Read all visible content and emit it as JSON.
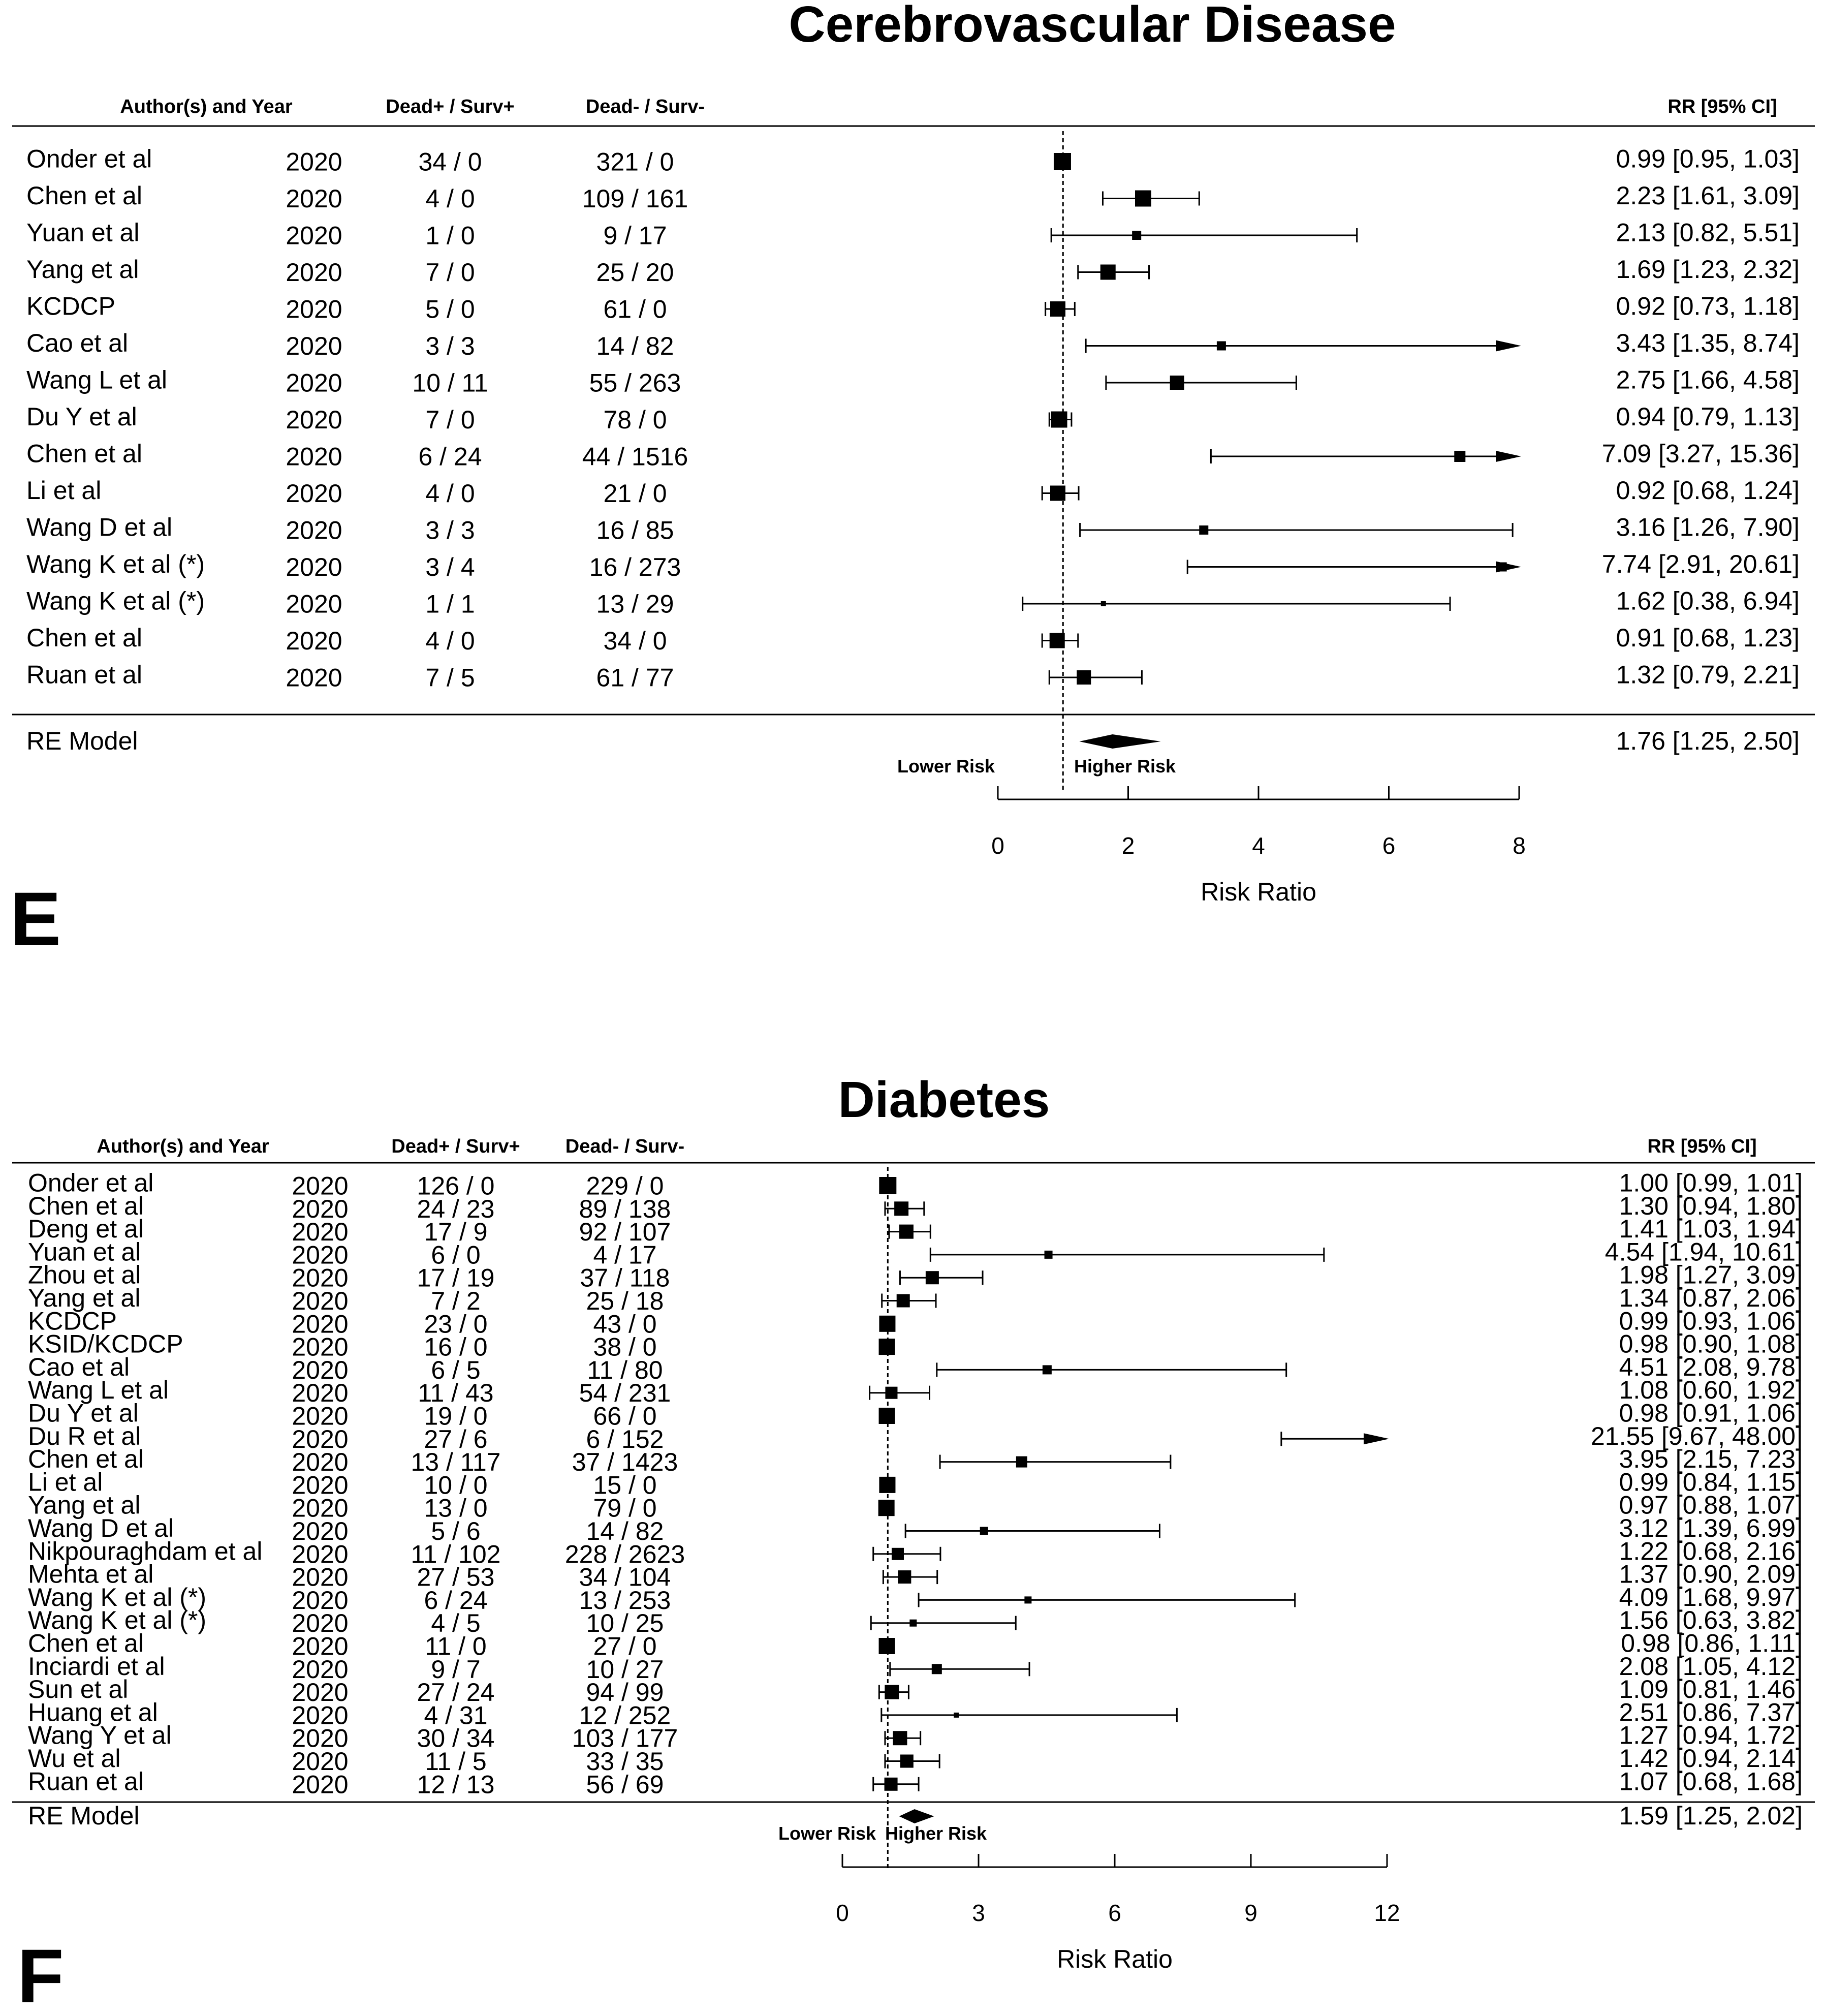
{
  "chart_data": [
    {
      "type": "forest",
      "panel_label": "E",
      "title": "Cerebrovascular Disease",
      "headers": {
        "study": "Author(s) and Year",
        "dead_pos": "Dead+ / Surv+",
        "dead_neg": "Dead- / Surv-",
        "estimate": "RR [95% CI]"
      },
      "studies": [
        {
          "author": "Onder et al",
          "year": "2020",
          "dead_pos": "34 / 0",
          "dead_neg": "321 / 0",
          "rr": 0.99,
          "lo": 0.95,
          "hi": 1.03,
          "label": "0.99 [0.95,  1.03]",
          "size": 34
        },
        {
          "author": "Chen et al",
          "year": "2020",
          "dead_pos": "4 / 0",
          "dead_neg": "109 / 161",
          "rr": 2.23,
          "lo": 1.61,
          "hi": 3.09,
          "label": "2.23 [1.61,  3.09]",
          "size": 32
        },
        {
          "author": "Yuan et al",
          "year": "2020",
          "dead_pos": "1 / 0",
          "dead_neg": "9 / 17",
          "rr": 2.13,
          "lo": 0.82,
          "hi": 5.51,
          "label": "2.13 [0.82,  5.51]",
          "size": 18
        },
        {
          "author": "Yang et al",
          "year": "2020",
          "dead_pos": "7 / 0",
          "dead_neg": "25 / 20",
          "rr": 1.69,
          "lo": 1.23,
          "hi": 2.32,
          "label": "1.69 [1.23,  2.32]",
          "size": 30
        },
        {
          "author": "KCDCP",
          "year": "2020",
          "dead_pos": "5 / 0",
          "dead_neg": "61 / 0",
          "rr": 0.92,
          "lo": 0.73,
          "hi": 1.18,
          "label": "0.92 [0.73,  1.18]",
          "size": 30
        },
        {
          "author": "Cao et al",
          "year": "2020",
          "dead_pos": "3 / 3",
          "dead_neg": "14 / 82",
          "rr": 3.43,
          "lo": 1.35,
          "hi": 8.74,
          "label": "3.43 [1.35,  8.74]",
          "size": 18
        },
        {
          "author": "Wang L et al",
          "year": "2020",
          "dead_pos": "10 / 11",
          "dead_neg": "55 / 263",
          "rr": 2.75,
          "lo": 1.66,
          "hi": 4.58,
          "label": "2.75 [1.66,  4.58]",
          "size": 28
        },
        {
          "author": "Du Y et al",
          "year": "2020",
          "dead_pos": "7 / 0",
          "dead_neg": "78 / 0",
          "rr": 0.94,
          "lo": 0.79,
          "hi": 1.13,
          "label": "0.94 [0.79,  1.13]",
          "size": 32
        },
        {
          "author": "Chen et al",
          "year": "2020",
          "dead_pos": "6 / 24",
          "dead_neg": "44 / 1516",
          "rr": 7.09,
          "lo": 3.27,
          "hi": 15.36,
          "label": "7.09 [3.27, 15.36]",
          "size": 22
        },
        {
          "author": "Li et al",
          "year": "2020",
          "dead_pos": "4 / 0",
          "dead_neg": "21 / 0",
          "rr": 0.92,
          "lo": 0.68,
          "hi": 1.24,
          "label": "0.92 [0.68,  1.24]",
          "size": 30
        },
        {
          "author": "Wang D et al",
          "year": "2020",
          "dead_pos": "3 / 3",
          "dead_neg": "16 / 85",
          "rr": 3.16,
          "lo": 1.26,
          "hi": 7.9,
          "label": "3.16 [1.26,  7.90]",
          "size": 18
        },
        {
          "author": "Wang K et al (*)",
          "year": "2020",
          "dead_pos": "3 / 4",
          "dead_neg": "16 / 273",
          "rr": 7.74,
          "lo": 2.91,
          "hi": 20.61,
          "label": "7.74 [2.91, 20.61]",
          "size": 18
        },
        {
          "author": "Wang K et al (*)",
          "year": "2020",
          "dead_pos": "1 / 1",
          "dead_neg": "13 / 29",
          "rr": 1.62,
          "lo": 0.38,
          "hi": 6.94,
          "label": "1.62 [0.38,  6.94]",
          "size": 10
        },
        {
          "author": "Chen et al",
          "year": "2020",
          "dead_pos": "4 / 0",
          "dead_neg": "34 / 0",
          "rr": 0.91,
          "lo": 0.68,
          "hi": 1.23,
          "label": "0.91 [0.68,  1.23]",
          "size": 30
        },
        {
          "author": "Ruan et al",
          "year": "2020",
          "dead_pos": "7 / 5",
          "dead_neg": "61 / 77",
          "rr": 1.32,
          "lo": 0.79,
          "hi": 2.21,
          "label": "1.32 [0.79,  2.21]",
          "size": 28
        }
      ],
      "summary": {
        "label": "RE Model",
        "rr": 1.76,
        "lo": 1.25,
        "hi": 2.5,
        "text": "1.76 [1.25,  2.50]"
      },
      "lower_text": "Lower Risk",
      "higher_text": "Higher Risk",
      "xlabel": "Risk Ratio",
      "xlim": [
        0,
        8
      ],
      "ticks": [
        0,
        2,
        4,
        6,
        8
      ],
      "reference_line": 1
    },
    {
      "type": "forest",
      "panel_label": "F",
      "title": "Diabetes",
      "headers": {
        "study": "Author(s) and Year",
        "dead_pos": "Dead+ / Surv+",
        "dead_neg": "Dead- / Surv-",
        "estimate": "RR [95% CI]"
      },
      "studies": [
        {
          "author": "Onder et al",
          "year": "2020",
          "dead_pos": "126 / 0",
          "dead_neg": "229 / 0",
          "rr": 1.0,
          "lo": 0.99,
          "hi": 1.01,
          "label": "1.00 [0.99,  1.01]",
          "size": 34
        },
        {
          "author": "Chen et al",
          "year": "2020",
          "dead_pos": "24 / 23",
          "dead_neg": "89 / 138",
          "rr": 1.3,
          "lo": 0.94,
          "hi": 1.8,
          "label": "1.30 [0.94,  1.80]",
          "size": 28
        },
        {
          "author": "Deng et al",
          "year": "2020",
          "dead_pos": "17 / 9",
          "dead_neg": "92 / 107",
          "rr": 1.41,
          "lo": 1.03,
          "hi": 1.94,
          "label": "1.41 [1.03,  1.94]",
          "size": 28
        },
        {
          "author": "Yuan et al",
          "year": "2020",
          "dead_pos": "6 / 0",
          "dead_neg": "4 / 17",
          "rr": 4.54,
          "lo": 1.94,
          "hi": 10.61,
          "label": "4.54 [1.94, 10.61]",
          "size": 16
        },
        {
          "author": "Zhou et al",
          "year": "2020",
          "dead_pos": "17 / 19",
          "dead_neg": "37 / 118",
          "rr": 1.98,
          "lo": 1.27,
          "hi": 3.09,
          "label": "1.98 [1.27,  3.09]",
          "size": 26
        },
        {
          "author": "Yang et al",
          "year": "2020",
          "dead_pos": "7 / 2",
          "dead_neg": "25 / 18",
          "rr": 1.34,
          "lo": 0.87,
          "hi": 2.06,
          "label": "1.34 [0.87,  2.06]",
          "size": 26
        },
        {
          "author": "KCDCP",
          "year": "2020",
          "dead_pos": "23 / 0",
          "dead_neg": "43 / 0",
          "rr": 0.99,
          "lo": 0.93,
          "hi": 1.06,
          "label": "0.99 [0.93,  1.06]",
          "size": 32
        },
        {
          "author": "KSID/KCDCP",
          "year": "2020",
          "dead_pos": "16 / 0",
          "dead_neg": "38 / 0",
          "rr": 0.98,
          "lo": 0.9,
          "hi": 1.08,
          "label": "0.98 [0.90,  1.08]",
          "size": 32
        },
        {
          "author": "Cao et al",
          "year": "2020",
          "dead_pos": "6 / 5",
          "dead_neg": "11 / 80",
          "rr": 4.51,
          "lo": 2.08,
          "hi": 9.78,
          "label": "4.51 [2.08,  9.78]",
          "size": 18
        },
        {
          "author": "Wang L et al",
          "year": "2020",
          "dead_pos": "11 / 43",
          "dead_neg": "54 / 231",
          "rr": 1.08,
          "lo": 0.6,
          "hi": 1.92,
          "label": "1.08 [0.60,  1.92]",
          "size": 24
        },
        {
          "author": "Du Y et al",
          "year": "2020",
          "dead_pos": "19 / 0",
          "dead_neg": "66 / 0",
          "rr": 0.98,
          "lo": 0.91,
          "hi": 1.06,
          "label": "0.98 [0.91,  1.06]",
          "size": 32
        },
        {
          "author": "Du R et al",
          "year": "2020",
          "dead_pos": "27 / 6",
          "dead_neg": "6 / 152",
          "rr": 21.55,
          "lo": 9.67,
          "hi": 48.0,
          "label": "21.55 [9.67, 48.00]",
          "size": 0
        },
        {
          "author": "Chen et al",
          "year": "2020",
          "dead_pos": "13 / 117",
          "dead_neg": "37 / 1423",
          "rr": 3.95,
          "lo": 2.15,
          "hi": 7.23,
          "label": "3.95 [2.15,  7.23]",
          "size": 22
        },
        {
          "author": "Li et al",
          "year": "2020",
          "dead_pos": "10 / 0",
          "dead_neg": "15 / 0",
          "rr": 0.99,
          "lo": 0.84,
          "hi": 1.15,
          "label": "0.99 [0.84,  1.15]",
          "size": 32
        },
        {
          "author": "Yang et al",
          "year": "2020",
          "dead_pos": "13 / 0",
          "dead_neg": "79 / 0",
          "rr": 0.97,
          "lo": 0.88,
          "hi": 1.07,
          "label": "0.97 [0.88,  1.07]",
          "size": 32
        },
        {
          "author": "Wang D et al",
          "year": "2020",
          "dead_pos": "5 / 6",
          "dead_neg": "14 / 82",
          "rr": 3.12,
          "lo": 1.39,
          "hi": 6.99,
          "label": "3.12 [1.39,  6.99]",
          "size": 16
        },
        {
          "author": "Nikpouraghdam et al",
          "year": "2020",
          "dead_pos": "11 / 102",
          "dead_neg": "228 / 2623",
          "rr": 1.22,
          "lo": 0.68,
          "hi": 2.16,
          "label": "1.22 [0.68,  2.16]",
          "size": 24
        },
        {
          "author": "Mehta et al",
          "year": "2020",
          "dead_pos": "27 / 53",
          "dead_neg": "34 / 104",
          "rr": 1.37,
          "lo": 0.9,
          "hi": 2.09,
          "label": "1.37 [0.90,  2.09]",
          "size": 26
        },
        {
          "author": "Wang K et al (*)",
          "year": "2020",
          "dead_pos": "6 / 24",
          "dead_neg": "13 / 253",
          "rr": 4.09,
          "lo": 1.68,
          "hi": 9.97,
          "label": "4.09 [1.68,  9.97]",
          "size": 14
        },
        {
          "author": "Wang K et al (*)",
          "year": "2020",
          "dead_pos": "4 / 5",
          "dead_neg": "10 / 25",
          "rr": 1.56,
          "lo": 0.63,
          "hi": 3.82,
          "label": "1.56 [0.63,  3.82]",
          "size": 14
        },
        {
          "author": "Chen et al",
          "year": "2020",
          "dead_pos": "11 / 0",
          "dead_neg": "27 / 0",
          "rr": 0.98,
          "lo": 0.86,
          "hi": 1.11,
          "label": "0.98 [0.86,  1.11]",
          "size": 32
        },
        {
          "author": "Inciardi et al",
          "year": "2020",
          "dead_pos": "9 / 7",
          "dead_neg": "10 / 27",
          "rr": 2.08,
          "lo": 1.05,
          "hi": 4.12,
          "label": "2.08 [1.05,  4.12]",
          "size": 20
        },
        {
          "author": "Sun et al",
          "year": "2020",
          "dead_pos": "27 / 24",
          "dead_neg": "94 / 99",
          "rr": 1.09,
          "lo": 0.81,
          "hi": 1.46,
          "label": "1.09 [0.81,  1.46]",
          "size": 28
        },
        {
          "author": "Huang et al",
          "year": "2020",
          "dead_pos": "4 / 31",
          "dead_neg": "12 / 252",
          "rr": 2.51,
          "lo": 0.86,
          "hi": 7.37,
          "label": "2.51 [0.86,  7.37]",
          "size": 10
        },
        {
          "author": "Wang Y et al",
          "year": "2020",
          "dead_pos": "30 / 34",
          "dead_neg": "103 / 177",
          "rr": 1.27,
          "lo": 0.94,
          "hi": 1.72,
          "label": "1.27 [0.94,  1.72]",
          "size": 28
        },
        {
          "author": "Wu et al",
          "year": "2020",
          "dead_pos": "11 / 5",
          "dead_neg": "33 / 35",
          "rr": 1.42,
          "lo": 0.94,
          "hi": 2.14,
          "label": "1.42 [0.94,  2.14]",
          "size": 26
        },
        {
          "author": "Ruan et al",
          "year": "2020",
          "dead_pos": "12 / 13",
          "dead_neg": "56 / 69",
          "rr": 1.07,
          "lo": 0.68,
          "hi": 1.68,
          "label": "1.07 [0.68,  1.68]",
          "size": 26
        }
      ],
      "summary": {
        "label": "RE Model",
        "rr": 1.59,
        "lo": 1.25,
        "hi": 2.02,
        "text": "1.59 [1.25,  2.02]"
      },
      "lower_text": "Lower Risk",
      "higher_text": "Higher Risk",
      "xlabel": "Risk Ratio",
      "xlim": [
        0,
        12
      ],
      "ticks": [
        0,
        3,
        6,
        9,
        12
      ],
      "reference_line": 1
    }
  ]
}
